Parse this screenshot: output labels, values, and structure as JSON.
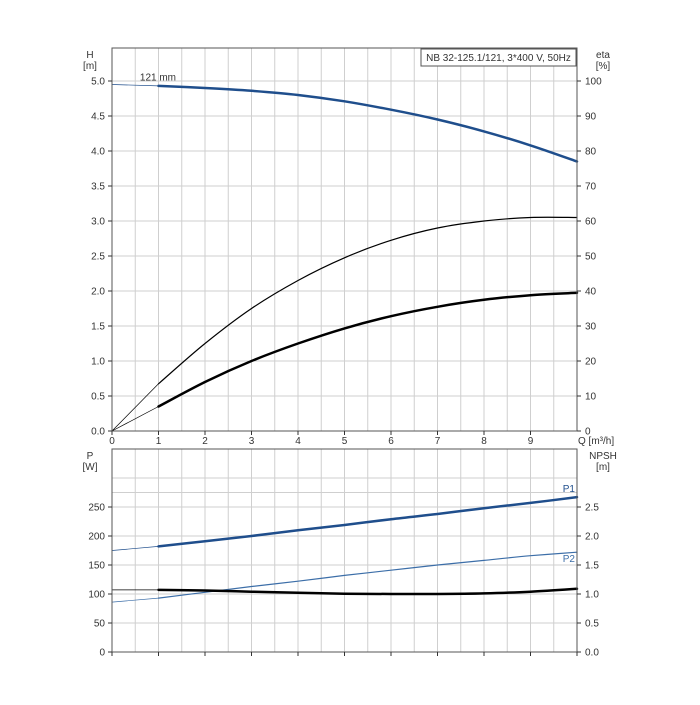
{
  "chart_data": [
    {
      "type": "line",
      "panel": "top",
      "title": "NB 32-125.1/121, 3*400 V, 50Hz",
      "xlabel": "Q [m³/h]",
      "ylabel": "H",
      "ylabel_unit": "[m]",
      "y2label": "eta",
      "y2label_unit": "[%]",
      "xlim": [
        0,
        10
      ],
      "ylim": [
        0,
        5.0
      ],
      "y2lim": [
        0,
        100
      ],
      "x_ticks": [
        "0",
        "1",
        "2",
        "3",
        "4",
        "5",
        "6",
        "7",
        "8",
        "9"
      ],
      "y_ticks": [
        "0.0",
        "0.5",
        "1.0",
        "1.5",
        "2.0",
        "2.5",
        "3.0",
        "3.5",
        "4.0",
        "4.5",
        "5.0"
      ],
      "y2_ticks": [
        "0",
        "10",
        "20",
        "30",
        "40",
        "50",
        "60",
        "70",
        "80",
        "90",
        "100"
      ],
      "grid": true,
      "series": [
        {
          "name": "121 mm",
          "axis": "left",
          "color": "#1f4e8c",
          "width": 2.5,
          "x": [
            1,
            2,
            3,
            4,
            5,
            6,
            7,
            8,
            9,
            10
          ],
          "values": [
            4.93,
            4.9,
            4.86,
            4.8,
            4.71,
            4.59,
            4.45,
            4.28,
            4.08,
            3.85
          ],
          "extension": {
            "x": [
              0,
              1
            ],
            "values": [
              4.95,
              4.93
            ]
          }
        },
        {
          "axis": "right",
          "color": "#000000",
          "width": 1.2,
          "x": [
            1,
            2,
            3,
            4,
            5,
            6,
            7,
            8,
            9,
            10
          ],
          "values": [
            13.5,
            25,
            35,
            43,
            49.5,
            54.5,
            58,
            60,
            61,
            61
          ],
          "extension": {
            "x": [
              0,
              1
            ],
            "values": [
              0,
              13.5
            ]
          }
        },
        {
          "axis": "right",
          "color": "#000000",
          "width": 2.5,
          "x": [
            1,
            2,
            3,
            4,
            5,
            6,
            7,
            8,
            9,
            10
          ],
          "values": [
            7,
            14,
            20,
            25,
            29.3,
            32.8,
            35.5,
            37.5,
            38.8,
            39.5
          ],
          "extension": {
            "x": [
              0,
              1
            ],
            "values": [
              0,
              7
            ]
          }
        }
      ]
    },
    {
      "type": "line",
      "panel": "bottom",
      "ylabel": "P",
      "ylabel_unit": "[W]",
      "y2label": "NPSH",
      "y2label_unit": "[m]",
      "xlim": [
        0,
        10
      ],
      "ylim": [
        0,
        300
      ],
      "y2lim": [
        0,
        3.0
      ],
      "y_ticks": [
        "0",
        "50",
        "100",
        "150",
        "200",
        "250"
      ],
      "y2_ticks": [
        "0.0",
        "0.5",
        "1.0",
        "1.5",
        "2.0",
        "2.5"
      ],
      "grid": true,
      "series": [
        {
          "name": "P1",
          "axis": "left",
          "color": "#1f4e8c",
          "width": 2.5,
          "x": [
            1,
            2,
            3,
            4,
            5,
            6,
            7,
            8,
            9,
            10
          ],
          "values": [
            182,
            191,
            200,
            210,
            219,
            229,
            238,
            248,
            257,
            267
          ],
          "extension": {
            "x": [
              0,
              1
            ],
            "values": [
              175,
              182
            ]
          }
        },
        {
          "name": "P2",
          "axis": "left",
          "color": "#3c6ea8",
          "width": 1.2,
          "x": [
            1,
            2,
            3,
            4,
            5,
            6,
            7,
            8,
            9,
            10
          ],
          "values": [
            93,
            103,
            113,
            122,
            132,
            141,
            150,
            158,
            166,
            172
          ],
          "extension": {
            "x": [
              0,
              1
            ],
            "values": [
              86,
              93
            ]
          }
        },
        {
          "axis": "right",
          "color": "#000000",
          "width": 2.5,
          "x": [
            1,
            2,
            3,
            4,
            5,
            6,
            7,
            8,
            9,
            10
          ],
          "values": [
            1.07,
            1.06,
            1.04,
            1.02,
            1.005,
            1.0,
            1.0,
            1.01,
            1.04,
            1.09
          ],
          "extension": {
            "x": [
              0,
              1
            ],
            "values": [
              1.07,
              1.07
            ]
          }
        }
      ]
    }
  ]
}
